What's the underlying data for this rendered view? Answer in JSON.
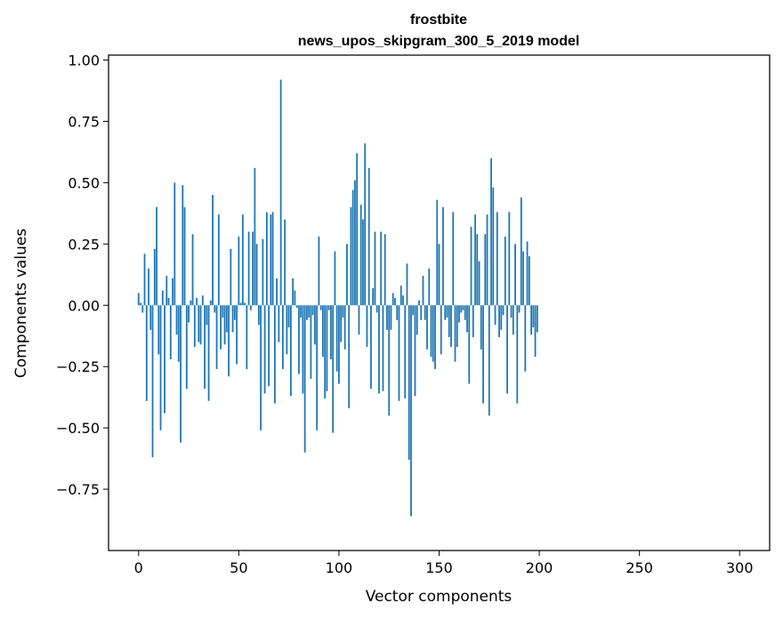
{
  "chart_data": {
    "type": "bar",
    "title_line1": "frostbite",
    "title_line2": "news_upos_skipgram_300_5_2019 model",
    "xlabel": "Vector components",
    "ylabel": "Components values",
    "xlim": [
      -15,
      315
    ],
    "ylim": [
      -1.0,
      1.02
    ],
    "x_ticks": [
      0,
      50,
      100,
      150,
      200,
      250,
      300
    ],
    "y_ticks": [
      -0.75,
      -0.5,
      -0.25,
      0.0,
      0.25,
      0.5,
      0.75,
      1.0
    ],
    "x_tick_labels": [
      "0",
      "50",
      "100",
      "150",
      "200",
      "250",
      "300"
    ],
    "y_tick_labels": [
      "−0.75",
      "−0.50",
      "−0.25",
      "0.00",
      "0.25",
      "0.50",
      "0.75",
      "1.00"
    ],
    "bar_color": "#1f77b4",
    "values": [
      0.05,
      0.01,
      -0.03,
      0.21,
      -0.39,
      0.15,
      -0.1,
      -0.62,
      0.23,
      0.4,
      -0.2,
      -0.51,
      0.06,
      -0.44,
      0.12,
      0.03,
      -0.22,
      0.11,
      0.5,
      -0.12,
      -0.23,
      -0.56,
      0.49,
      0.4,
      -0.34,
      -0.07,
      0.02,
      0.29,
      -0.17,
      0.03,
      -0.15,
      -0.16,
      0.04,
      -0.34,
      -0.08,
      -0.39,
      0.02,
      0.45,
      -0.03,
      -0.26,
      0.37,
      -0.18,
      -0.05,
      -0.16,
      -0.11,
      -0.29,
      0.23,
      -0.11,
      -0.06,
      -0.24,
      0.28,
      0.01,
      0.37,
      0.01,
      -0.26,
      0.3,
      -0.02,
      0.3,
      0.56,
      0.25,
      -0.08,
      -0.51,
      0.27,
      -0.36,
      0.38,
      -0.33,
      0.37,
      0.38,
      -0.4,
      0.11,
      -0.15,
      0.92,
      -0.26,
      0.35,
      -0.2,
      -0.09,
      -0.37,
      0.11,
      0.06,
      -0.01,
      -0.28,
      -0.05,
      -0.36,
      -0.6,
      -0.06,
      -0.05,
      -0.3,
      -0.04,
      -0.16,
      -0.51,
      0.28,
      -0.02,
      -0.21,
      -0.38,
      -0.35,
      -0.02,
      -0.22,
      -0.52,
      0.22,
      -0.27,
      -0.32,
      -0.15,
      -0.05,
      -0.18,
      0.25,
      -0.42,
      0.4,
      0.47,
      0.51,
      0.62,
      -0.12,
      0.41,
      0.35,
      0.66,
      -0.17,
      0.56,
      -0.34,
      0.07,
      0.3,
      -0.03,
      -0.36,
      0.3,
      -0.35,
      0.29,
      -0.1,
      -0.45,
      -0.1,
      0.05,
      0.03,
      -0.06,
      -0.39,
      0.08,
      0.04,
      -0.38,
      0.17,
      -0.63,
      -0.86,
      -0.04,
      -0.37,
      -0.12,
      0.02,
      -0.06,
      0.12,
      -0.06,
      -0.18,
      0.15,
      -0.21,
      -0.23,
      -0.26,
      0.43,
      0.25,
      -0.2,
      0.4,
      -0.06,
      -0.05,
      -0.13,
      -0.17,
      0.38,
      -0.23,
      -0.17,
      -0.07,
      -0.03,
      -0.02,
      -0.06,
      -0.11,
      -0.32,
      0.32,
      -0.13,
      0.37,
      0.29,
      0.18,
      -0.18,
      -0.4,
      0.29,
      0.37,
      -0.45,
      0.6,
      0.48,
      -0.08,
      0.38,
      -0.13,
      -0.1,
      -0.04,
      0.28,
      -0.36,
      0.38,
      -0.05,
      -0.12,
      0.25,
      -0.4,
      -0.03,
      0.44,
      0.22,
      -0.27,
      0.26,
      0.2,
      -0.12,
      -0.09,
      -0.21,
      -0.11
    ]
  }
}
